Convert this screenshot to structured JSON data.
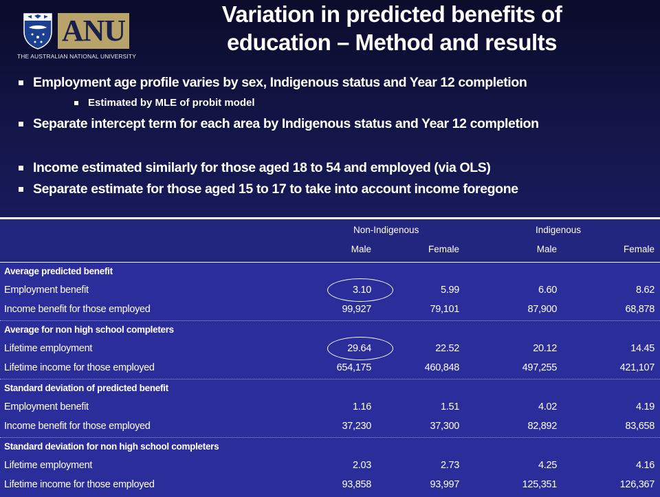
{
  "logo": {
    "badge_text": "ANU",
    "university": "THE AUSTRALIAN NATIONAL UNIVERSITY"
  },
  "title": {
    "line1": "Variation in predicted benefits of",
    "line2": "education – Method and results"
  },
  "bullets": [
    {
      "text": "Employment  age profile varies by sex, Indigenous status and Year 12 completion",
      "level": 1
    },
    {
      "text": "Estimated by MLE of probit model",
      "level": 2
    },
    {
      "text": "Separate intercept term for each area by Indigenous status and Year 12 completion",
      "level": 1
    },
    {
      "text": "Income estimated similarly for those aged 18 to 54 and employed (via OLS)",
      "level": 1
    },
    {
      "text": "Separate estimate for those aged 15 to 17 to take into account income foregone",
      "level": 1
    }
  ],
  "table": {
    "groups": [
      "Non-Indigenous",
      "Indigenous"
    ],
    "columns": [
      "Male",
      "Female",
      "Male",
      "Female"
    ],
    "sections": [
      {
        "heading": "Average predicted benefit",
        "rows": [
          {
            "label": "Employment benefit",
            "values": [
              "3.10",
              "5.99",
              "6.60",
              "8.62"
            ]
          },
          {
            "label": "Income benefit for those employed",
            "values": [
              "99,927",
              "79,101",
              "87,900",
              "68,878"
            ]
          }
        ]
      },
      {
        "heading": "Average for non high school completers",
        "rows": [
          {
            "label": "Lifetime employment",
            "values": [
              "29.64",
              "22.52",
              "20.12",
              "14.45"
            ]
          },
          {
            "label": "Lifetime income for those employed",
            "values": [
              "654,175",
              "460,848",
              "497,255",
              "421,107"
            ]
          }
        ]
      },
      {
        "heading": "Standard deviation of predicted benefit",
        "rows": [
          {
            "label": "Employment benefit",
            "values": [
              "1.16",
              "1.51",
              "4.02",
              "4.19"
            ]
          },
          {
            "label": "Income benefit for those employed",
            "values": [
              "37,230",
              "37,300",
              "82,892",
              "83,658"
            ]
          }
        ]
      },
      {
        "heading": "Standard deviation for non high school completers",
        "rows": [
          {
            "label": "Lifetime employment",
            "values": [
              "2.03",
              "2.73",
              "4.25",
              "4.16"
            ]
          },
          {
            "label": "Lifetime income for those employed",
            "values": [
              "93,858",
              "93,997",
              "125,351",
              "126,367"
            ]
          }
        ]
      }
    ]
  }
}
